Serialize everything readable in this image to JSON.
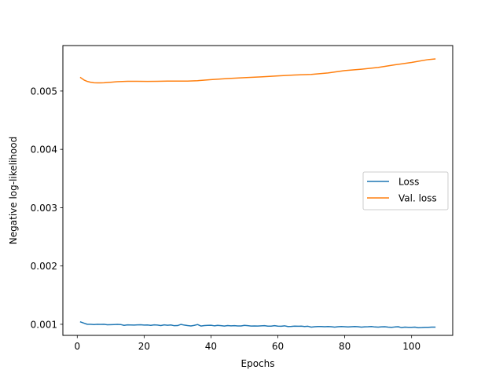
{
  "chart_data": {
    "type": "line",
    "title": "",
    "xlabel": "Epochs",
    "ylabel": "Negative log-likelihood",
    "xlim": [
      -4.3,
      112.3
    ],
    "ylim": [
      0.00081,
      0.00578
    ],
    "x_ticks": [
      0,
      20,
      40,
      60,
      80,
      100
    ],
    "x_tick_labels": [
      "0",
      "20",
      "40",
      "60",
      "80",
      "100"
    ],
    "y_ticks": [
      0.001,
      0.002,
      0.003,
      0.004,
      0.005
    ],
    "y_tick_labels": [
      "0.001",
      "0.002",
      "0.003",
      "0.004",
      "0.005"
    ],
    "grid": false,
    "legend_position": "center-right",
    "series": [
      {
        "name": "Loss",
        "color": "#1f77b4",
        "x": [
          1,
          2,
          3,
          4,
          5,
          6,
          7,
          8,
          9,
          10,
          11,
          12,
          13,
          14,
          15,
          16,
          17,
          18,
          19,
          20,
          21,
          22,
          23,
          24,
          25,
          26,
          27,
          28,
          29,
          30,
          31,
          32,
          33,
          34,
          35,
          36,
          37,
          38,
          39,
          40,
          41,
          42,
          43,
          44,
          45,
          46,
          47,
          48,
          49,
          50,
          51,
          52,
          53,
          54,
          55,
          56,
          57,
          58,
          59,
          60,
          61,
          62,
          63,
          64,
          65,
          66,
          67,
          68,
          69,
          70,
          71,
          72,
          73,
          74,
          75,
          76,
          77,
          78,
          79,
          80,
          81,
          82,
          83,
          84,
          85,
          86,
          87,
          88,
          89,
          90,
          91,
          92,
          93,
          94,
          95,
          96,
          97,
          98,
          99,
          100,
          101,
          102,
          103,
          104,
          105,
          106,
          107
        ],
        "y": [
          0.00104,
          0.00102,
          0.001,
          0.001,
          0.000995,
          0.001,
          0.000998,
          0.001,
          0.000992,
          0.000994,
          0.000996,
          0.000998,
          0.000996,
          0.000982,
          0.00099,
          0.000988,
          0.000986,
          0.00099,
          0.000992,
          0.000986,
          0.000988,
          0.000982,
          0.00099,
          0.000986,
          0.000978,
          0.00099,
          0.000984,
          0.000988,
          0.000976,
          0.000978,
          0.000998,
          0.000986,
          0.000978,
          0.000972,
          0.000982,
          0.000996,
          0.00097,
          0.000978,
          0.000982,
          0.000984,
          0.000974,
          0.000982,
          0.000976,
          0.00097,
          0.000978,
          0.000974,
          0.000976,
          0.000972,
          0.000972,
          0.000982,
          0.000976,
          0.00097,
          0.000972,
          0.00097,
          0.000974,
          0.000976,
          0.000968,
          0.000968,
          0.000976,
          0.000968,
          0.000966,
          0.000974,
          0.000962,
          0.000964,
          0.000968,
          0.000966,
          0.000968,
          0.000962,
          0.000966,
          0.000952,
          0.000958,
          0.000962,
          0.000962,
          0.000958,
          0.000962,
          0.000958,
          0.000952,
          0.000958,
          0.000962,
          0.000958,
          0.000954,
          0.000958,
          0.000962,
          0.000958,
          0.000952,
          0.000956,
          0.000958,
          0.000962,
          0.000954,
          0.000952,
          0.000956,
          0.000958,
          0.000952,
          0.000948,
          0.000954,
          0.000958,
          0.000944,
          0.000952,
          0.000948,
          0.000948,
          0.000952,
          0.000942,
          0.000944,
          0.000948,
          0.000948,
          0.000952,
          0.000952
        ]
      },
      {
        "name": "Val. loss",
        "color": "#ff7f0e",
        "x": [
          1,
          2,
          3,
          4,
          5,
          6,
          7,
          8,
          10,
          12,
          15,
          18,
          21,
          24,
          27,
          30,
          33,
          36,
          40,
          45,
          50,
          55,
          60,
          65,
          70,
          75,
          80,
          85,
          90,
          95,
          100,
          105,
          107
        ],
        "y": [
          0.00523,
          0.00519,
          0.005165,
          0.00515,
          0.005142,
          0.00514,
          0.00514,
          0.005142,
          0.00515,
          0.00516,
          0.005167,
          0.005168,
          0.005165,
          0.005167,
          0.00517,
          0.00517,
          0.00517,
          0.005178,
          0.005195,
          0.005215,
          0.00523,
          0.005243,
          0.00526,
          0.005275,
          0.005285,
          0.00531,
          0.00535,
          0.005375,
          0.005405,
          0.00545,
          0.00549,
          0.00554,
          0.00555
        ]
      }
    ]
  }
}
